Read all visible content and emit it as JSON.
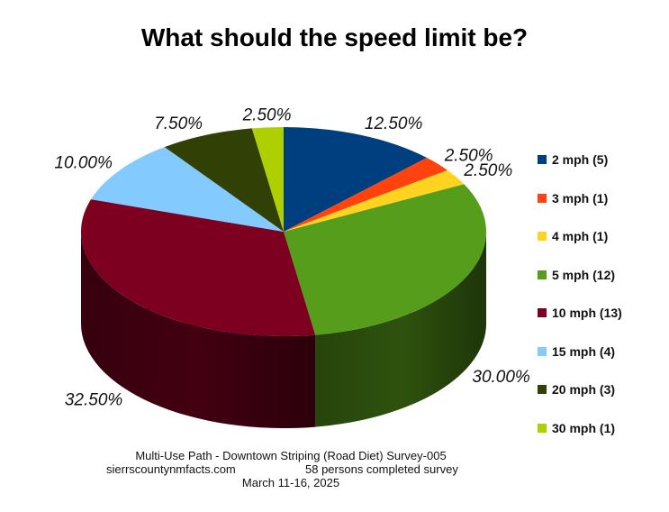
{
  "chart_data": {
    "type": "pie",
    "title": "What should the speed limit be?",
    "three_d": true,
    "legend_position": "right",
    "slices": [
      {
        "legend": "2 mph (5)",
        "percent": 12.5,
        "label": "12.50%",
        "color": "#003F7F"
      },
      {
        "legend": "3 mph (1)",
        "percent": 2.5,
        "label": "2.50%",
        "color": "#FF420E"
      },
      {
        "legend": "4 mph (1)",
        "percent": 2.5,
        "label": "2.50%",
        "color": "#FFD320"
      },
      {
        "legend": "5 mph (12)",
        "percent": 30.0,
        "label": "30.00%",
        "color": "#579D1C"
      },
      {
        "legend": "10 mph (13)",
        "percent": 32.5,
        "label": "32.50%",
        "color": "#7E0021"
      },
      {
        "legend": "15 mph (4)",
        "percent": 10.0,
        "label": "10.00%",
        "color": "#83CAFF"
      },
      {
        "legend": "20 mph (3)",
        "percent": 7.5,
        "label": "7.50%",
        "color": "#314004"
      },
      {
        "legend": "30 mph (1)",
        "percent": 2.5,
        "label": "2.50%",
        "color": "#AECF00"
      }
    ]
  },
  "footer": {
    "line1": "Multi-Use Path - Downtown Striping (Road Diet) Survey-005",
    "site": "sierrscountynmfacts.com",
    "completed": "58 persons completed survey",
    "dates": "March 11-16, 2025"
  }
}
